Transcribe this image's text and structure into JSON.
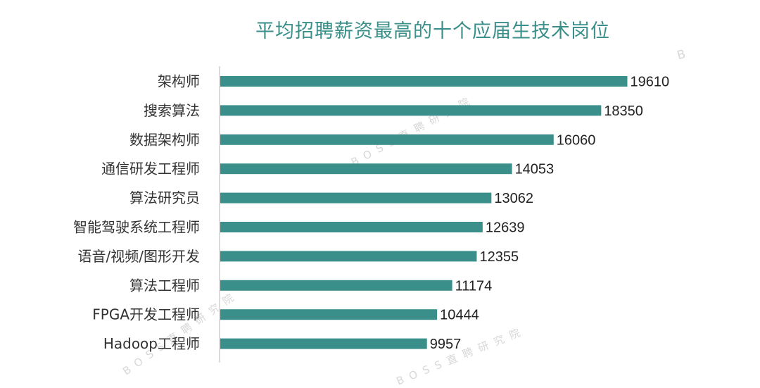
{
  "chart_data": {
    "type": "bar",
    "orientation": "horizontal",
    "title": "平均招聘薪资最高的十个应届生技术岗位",
    "categories": [
      "架构师",
      "搜索算法",
      "数据架构师",
      "通信研发工程师",
      "算法研究员",
      "智能驾驶系统工程师",
      "语音/视频/图形开发",
      "算法工程师",
      "FPGA开发工程师",
      "Hadoop工程师"
    ],
    "values": [
      19610,
      18350,
      16060,
      14053,
      13062,
      12639,
      12355,
      11174,
      10444,
      9957
    ],
    "value_labels": [
      "19610",
      "18350",
      "16060",
      "14053",
      "13062",
      "12639",
      "12355",
      "11174",
      "10444",
      "9957"
    ],
    "xlim": [
      0,
      20000
    ],
    "grid": false,
    "legend": "none",
    "bar_color": "#3a8f8a",
    "title_color": "#3a8f8a"
  },
  "watermark": {
    "text_1": "BOSS直聘研究院",
    "text_2": "BOSS直聘研究院",
    "text_3": "BOSS直聘研究院",
    "letter": "B"
  }
}
